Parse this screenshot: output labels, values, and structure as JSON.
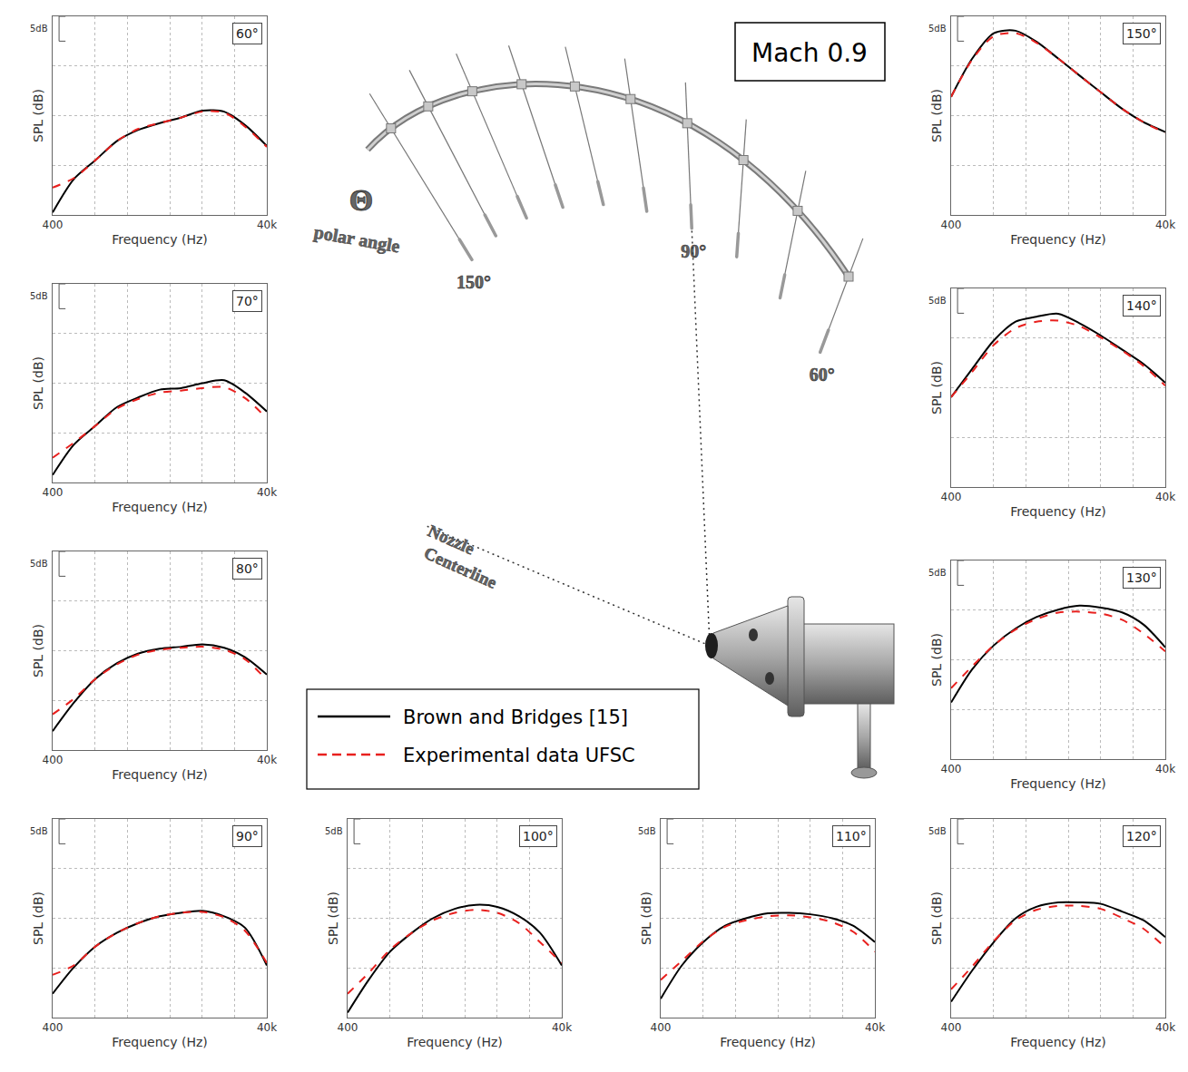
{
  "chart_data": [
    {
      "type": "line",
      "title": "60°",
      "x_label": "Frequency (Hz)",
      "y_label": "SPL (dB)",
      "x": [
        400,
        630,
        1000,
        1600,
        2500,
        4000,
        6300,
        10000,
        16000,
        25000,
        40000
      ],
      "xlim": [
        400,
        40000
      ],
      "xticks": [
        400,
        {
          "value": 40000,
          "label": "40k"
        }
      ],
      "x_gridlines": [
        1000,
        2000,
        5000,
        10000,
        20000
      ],
      "ylim": [
        0,
        40
      ],
      "yticks": [
        0,
        10,
        20,
        30,
        40
      ],
      "log": "x",
      "grid": true,
      "tick_labels": "x",
      "scale_bar": {
        "value": 5,
        "label": "5dB"
      },
      "series": [
        {
          "name": "Brown and Bridges [15]",
          "color": "#000000",
          "line_style": "solid",
          "values": [
            0.5,
            7.2,
            11.0,
            14.9,
            17.1,
            18.5,
            19.6,
            21.0,
            20.8,
            18.1,
            13.9
          ]
        },
        {
          "name": "Experimental data UFSC",
          "color": "#e8201e",
          "line_style": "dashed",
          "values": [
            5.5,
            7.4,
            11.0,
            14.9,
            17.3,
            18.5,
            19.6,
            20.8,
            20.6,
            17.8,
            13.7
          ]
        }
      ]
    },
    {
      "type": "line",
      "title": "70°",
      "x_label": "Frequency (Hz)",
      "y_label": "SPL (dB)",
      "x": [
        400,
        630,
        1000,
        1600,
        2500,
        4000,
        6300,
        10000,
        16000,
        25000,
        40000
      ],
      "xlim": [
        400,
        40000
      ],
      "xticks": [
        400,
        {
          "value": 40000,
          "label": "40k"
        }
      ],
      "x_gridlines": [
        1000,
        2000,
        5000,
        10000,
        20000
      ],
      "ylim": [
        0,
        40
      ],
      "yticks": [
        0,
        10,
        20,
        30,
        40
      ],
      "log": "x",
      "grid": true,
      "tick_labels": "x",
      "scale_bar": {
        "value": 5,
        "label": "5dB"
      },
      "series": [
        {
          "name": "Brown and Bridges [15]",
          "color": "#000000",
          "line_style": "solid",
          "values": [
            1.5,
            7.6,
            11.4,
            15.2,
            17.1,
            18.7,
            19.0,
            20.0,
            20.6,
            18.1,
            14.3
          ]
        },
        {
          "name": "Experimental data UFSC",
          "color": "#e8201e",
          "line_style": "dashed",
          "values": [
            5.0,
            8.0,
            11.4,
            14.9,
            16.8,
            18.1,
            18.5,
            19.0,
            19.2,
            17.0,
            12.9
          ]
        }
      ]
    },
    {
      "type": "line",
      "title": "80°",
      "x_label": "Frequency (Hz)",
      "y_label": "SPL (dB)",
      "x": [
        400,
        630,
        1000,
        1600,
        2500,
        4000,
        6300,
        10000,
        16000,
        25000,
        40000
      ],
      "xlim": [
        400,
        40000
      ],
      "xticks": [
        400,
        {
          "value": 40000,
          "label": "40k"
        }
      ],
      "x_gridlines": [
        1000,
        2000,
        5000,
        10000,
        20000
      ],
      "ylim": [
        0,
        40
      ],
      "yticks": [
        0,
        10,
        20,
        30,
        40
      ],
      "log": "x",
      "grid": true,
      "tick_labels": "x",
      "scale_bar": {
        "value": 5,
        "label": "5dB"
      },
      "series": [
        {
          "name": "Brown and Bridges [15]",
          "color": "#000000",
          "line_style": "solid",
          "values": [
            3.8,
            9.5,
            14.3,
            17.5,
            19.4,
            20.4,
            20.8,
            21.3,
            20.6,
            18.7,
            15.2
          ]
        },
        {
          "name": "Experimental data UFSC",
          "color": "#e8201e",
          "line_style": "dashed",
          "values": [
            7.2,
            10.3,
            14.3,
            17.3,
            19.2,
            20.2,
            20.6,
            20.8,
            20.2,
            18.3,
            14.1
          ]
        }
      ]
    },
    {
      "type": "line",
      "title": "90°",
      "x_label": "Frequency (Hz)",
      "y_label": "SPL (dB)",
      "x": [
        400,
        630,
        1000,
        1600,
        2500,
        4000,
        6300,
        10000,
        16000,
        25000,
        40000
      ],
      "xlim": [
        400,
        40000
      ],
      "xticks": [
        400,
        {
          "value": 40000,
          "label": "40k"
        }
      ],
      "x_gridlines": [
        1000,
        2000,
        5000,
        10000,
        20000
      ],
      "ylim": [
        0,
        40
      ],
      "yticks": [
        0,
        10,
        20,
        30,
        40
      ],
      "log": "x",
      "grid": true,
      "tick_labels": "x",
      "scale_bar": {
        "value": 5,
        "label": "5dB"
      },
      "series": [
        {
          "name": "Brown and Bridges [15]",
          "color": "#000000",
          "line_style": "solid",
          "values": [
            4.8,
            10.1,
            14.3,
            17.1,
            19.0,
            20.4,
            21.1,
            21.5,
            20.4,
            18.1,
            10.5
          ]
        },
        {
          "name": "Experimental data UFSC",
          "color": "#e8201e",
          "line_style": "dashed",
          "values": [
            8.6,
            10.5,
            14.3,
            17.1,
            19.0,
            20.4,
            21.1,
            21.3,
            20.2,
            17.5,
            11.0
          ]
        }
      ]
    },
    {
      "type": "line",
      "title": "100°",
      "x_label": "Frequency (Hz)",
      "y_label": "SPL (dB)",
      "x": [
        400,
        630,
        1000,
        1600,
        2500,
        4000,
        6300,
        10000,
        16000,
        25000,
        40000
      ],
      "xlim": [
        400,
        40000
      ],
      "xticks": [
        400,
        {
          "value": 40000,
          "label": "40k"
        }
      ],
      "x_gridlines": [
        1000,
        2000,
        5000,
        10000,
        20000
      ],
      "ylim": [
        0,
        40
      ],
      "yticks": [
        0,
        10,
        20,
        30,
        40
      ],
      "log": "x",
      "grid": true,
      "tick_labels": "x",
      "scale_bar": {
        "value": 5,
        "label": "5dB"
      },
      "series": [
        {
          "name": "Brown and Bridges [15]",
          "color": "#000000",
          "line_style": "solid",
          "values": [
            1.0,
            7.6,
            13.3,
            17.1,
            20.0,
            21.9,
            22.7,
            22.3,
            20.4,
            17.1,
            10.5
          ]
        },
        {
          "name": "Experimental data UFSC",
          "color": "#e8201e",
          "line_style": "dashed",
          "values": [
            4.8,
            9.0,
            13.7,
            17.1,
            19.6,
            21.1,
            21.7,
            21.1,
            19.0,
            15.2,
            11.0
          ]
        }
      ]
    },
    {
      "type": "line",
      "title": "110°",
      "x_label": "Frequency (Hz)",
      "y_label": "SPL (dB)",
      "x": [
        400,
        630,
        1000,
        1600,
        2500,
        4000,
        6300,
        10000,
        16000,
        25000,
        40000
      ],
      "xlim": [
        400,
        40000
      ],
      "xticks": [
        400,
        {
          "value": 40000,
          "label": "40k"
        }
      ],
      "x_gridlines": [
        1000,
        2000,
        5000,
        10000,
        20000
      ],
      "ylim": [
        0,
        40
      ],
      "yticks": [
        0,
        10,
        20,
        30,
        40
      ],
      "log": "x",
      "grid": true,
      "tick_labels": "x",
      "scale_bar": {
        "value": 5,
        "label": "5dB"
      },
      "series": [
        {
          "name": "Brown and Bridges [15]",
          "color": "#000000",
          "line_style": "solid",
          "values": [
            3.8,
            10.5,
            15.2,
            18.5,
            20.0,
            21.0,
            21.1,
            20.8,
            20.0,
            18.5,
            15.2
          ]
        },
        {
          "name": "Experimental data UFSC",
          "color": "#e8201e",
          "line_style": "dashed",
          "values": [
            7.6,
            11.4,
            15.4,
            18.3,
            19.6,
            20.4,
            20.6,
            20.2,
            19.2,
            17.3,
            13.3
          ]
        }
      ]
    },
    {
      "type": "line",
      "title": "120°",
      "x_label": "Frequency (Hz)",
      "y_label": "SPL (dB)",
      "x": [
        400,
        630,
        1000,
        1600,
        2500,
        4000,
        6300,
        10000,
        16000,
        25000,
        40000
      ],
      "xlim": [
        400,
        40000
      ],
      "xticks": [
        400,
        {
          "value": 40000,
          "label": "40k"
        }
      ],
      "x_gridlines": [
        1000,
        2000,
        5000,
        10000,
        20000
      ],
      "ylim": [
        0,
        40
      ],
      "yticks": [
        0,
        10,
        20,
        30,
        40
      ],
      "log": "x",
      "grid": true,
      "tick_labels": "x",
      "scale_bar": {
        "value": 5,
        "label": "5dB"
      },
      "series": [
        {
          "name": "Brown and Bridges [15]",
          "color": "#000000",
          "line_style": "solid",
          "values": [
            3.2,
            9.5,
            15.2,
            20.0,
            22.3,
            23.2,
            23.2,
            22.9,
            21.3,
            19.6,
            16.2
          ]
        },
        {
          "name": "Experimental data UFSC",
          "color": "#e8201e",
          "line_style": "dashed",
          "values": [
            5.7,
            10.3,
            15.4,
            19.6,
            21.7,
            22.5,
            22.5,
            21.9,
            20.0,
            17.9,
            14.1
          ]
        }
      ]
    },
    {
      "type": "line",
      "title": "130°",
      "x_label": "Frequency (Hz)",
      "y_label": "SPL (dB)",
      "x": [
        400,
        630,
        1000,
        1600,
        2500,
        4000,
        6300,
        10000,
        16000,
        25000,
        40000
      ],
      "xlim": [
        400,
        40000
      ],
      "xticks": [
        400,
        {
          "value": 40000,
          "label": "40k"
        }
      ],
      "x_gridlines": [
        1000,
        2000,
        5000,
        10000,
        20000
      ],
      "ylim": [
        0,
        40
      ],
      "yticks": [
        0,
        10,
        20,
        30,
        40
      ],
      "log": "x",
      "grid": true,
      "tick_labels": "x",
      "scale_bar": {
        "value": 5,
        "label": "5dB"
      },
      "series": [
        {
          "name": "Brown and Bridges [15]",
          "color": "#000000",
          "line_style": "solid",
          "values": [
            11.4,
            18.1,
            22.9,
            26.3,
            28.6,
            30.1,
            30.9,
            30.5,
            29.5,
            27.1,
            22.5
          ]
        },
        {
          "name": "Experimental data UFSC",
          "color": "#e8201e",
          "line_style": "dashed",
          "values": [
            14.3,
            18.7,
            22.9,
            26.1,
            28.2,
            29.5,
            29.7,
            29.3,
            28.0,
            25.3,
            21.7
          ]
        }
      ]
    },
    {
      "type": "line",
      "title": "140°",
      "x_label": "Frequency (Hz)",
      "y_label": "SPL (dB)",
      "x": [
        400,
        630,
        1000,
        1600,
        2500,
        4000,
        6300,
        10000,
        16000,
        25000,
        40000
      ],
      "xlim": [
        400,
        40000
      ],
      "xticks": [
        400,
        {
          "value": 40000,
          "label": "40k"
        }
      ],
      "x_gridlines": [
        1000,
        2000,
        5000,
        10000,
        20000
      ],
      "ylim": [
        0,
        40
      ],
      "yticks": [
        0,
        10,
        20,
        30,
        40
      ],
      "log": "x",
      "grid": true,
      "tick_labels": "x",
      "scale_bar": {
        "value": 5,
        "label": "5dB"
      },
      "series": [
        {
          "name": "Brown and Bridges [15]",
          "color": "#000000",
          "line_style": "solid",
          "values": [
            18.1,
            23.8,
            29.5,
            33.3,
            34.3,
            34.9,
            33.0,
            30.5,
            27.6,
            24.8,
            21.0
          ]
        },
        {
          "name": "Experimental data UFSC",
          "color": "#e8201e",
          "line_style": "dashed",
          "values": [
            18.1,
            23.2,
            28.6,
            32.0,
            33.3,
            33.5,
            32.4,
            30.1,
            27.4,
            24.4,
            20.4
          ]
        }
      ]
    },
    {
      "type": "line",
      "title": "150°",
      "x_label": "Frequency (Hz)",
      "y_label": "SPL (dB)",
      "x": [
        400,
        630,
        1000,
        1600,
        2500,
        4000,
        6300,
        10000,
        16000,
        25000,
        40000
      ],
      "xlim": [
        400,
        40000
      ],
      "xticks": [
        400,
        {
          "value": 40000,
          "label": "40k"
        }
      ],
      "x_gridlines": [
        1000,
        2000,
        5000,
        10000,
        20000
      ],
      "ylim": [
        0,
        40
      ],
      "yticks": [
        0,
        10,
        20,
        30,
        40
      ],
      "log": "x",
      "grid": true,
      "tick_labels": "x",
      "scale_bar": {
        "value": 5,
        "label": "5dB"
      },
      "series": [
        {
          "name": "Brown and Bridges [15]",
          "color": "#000000",
          "line_style": "solid",
          "values": [
            23.8,
            31.5,
            36.6,
            37.1,
            34.9,
            31.5,
            28.1,
            24.7,
            21.3,
            18.7,
            16.7
          ]
        },
        {
          "name": "Experimental data UFSC",
          "color": "#e8201e",
          "line_style": "dashed",
          "values": [
            23.8,
            31.3,
            36.0,
            36.6,
            34.7,
            31.5,
            28.1,
            24.7,
            21.3,
            18.7,
            16.5
          ]
        }
      ]
    }
  ],
  "diagram": {
    "title_box": "Mach 0.9",
    "polar_symbol": "Θ",
    "polar_label": "polar angle",
    "angle_labels": [
      "150°",
      "90°",
      "60°"
    ],
    "centerline_label": "Nozzle Centerline"
  }
}
